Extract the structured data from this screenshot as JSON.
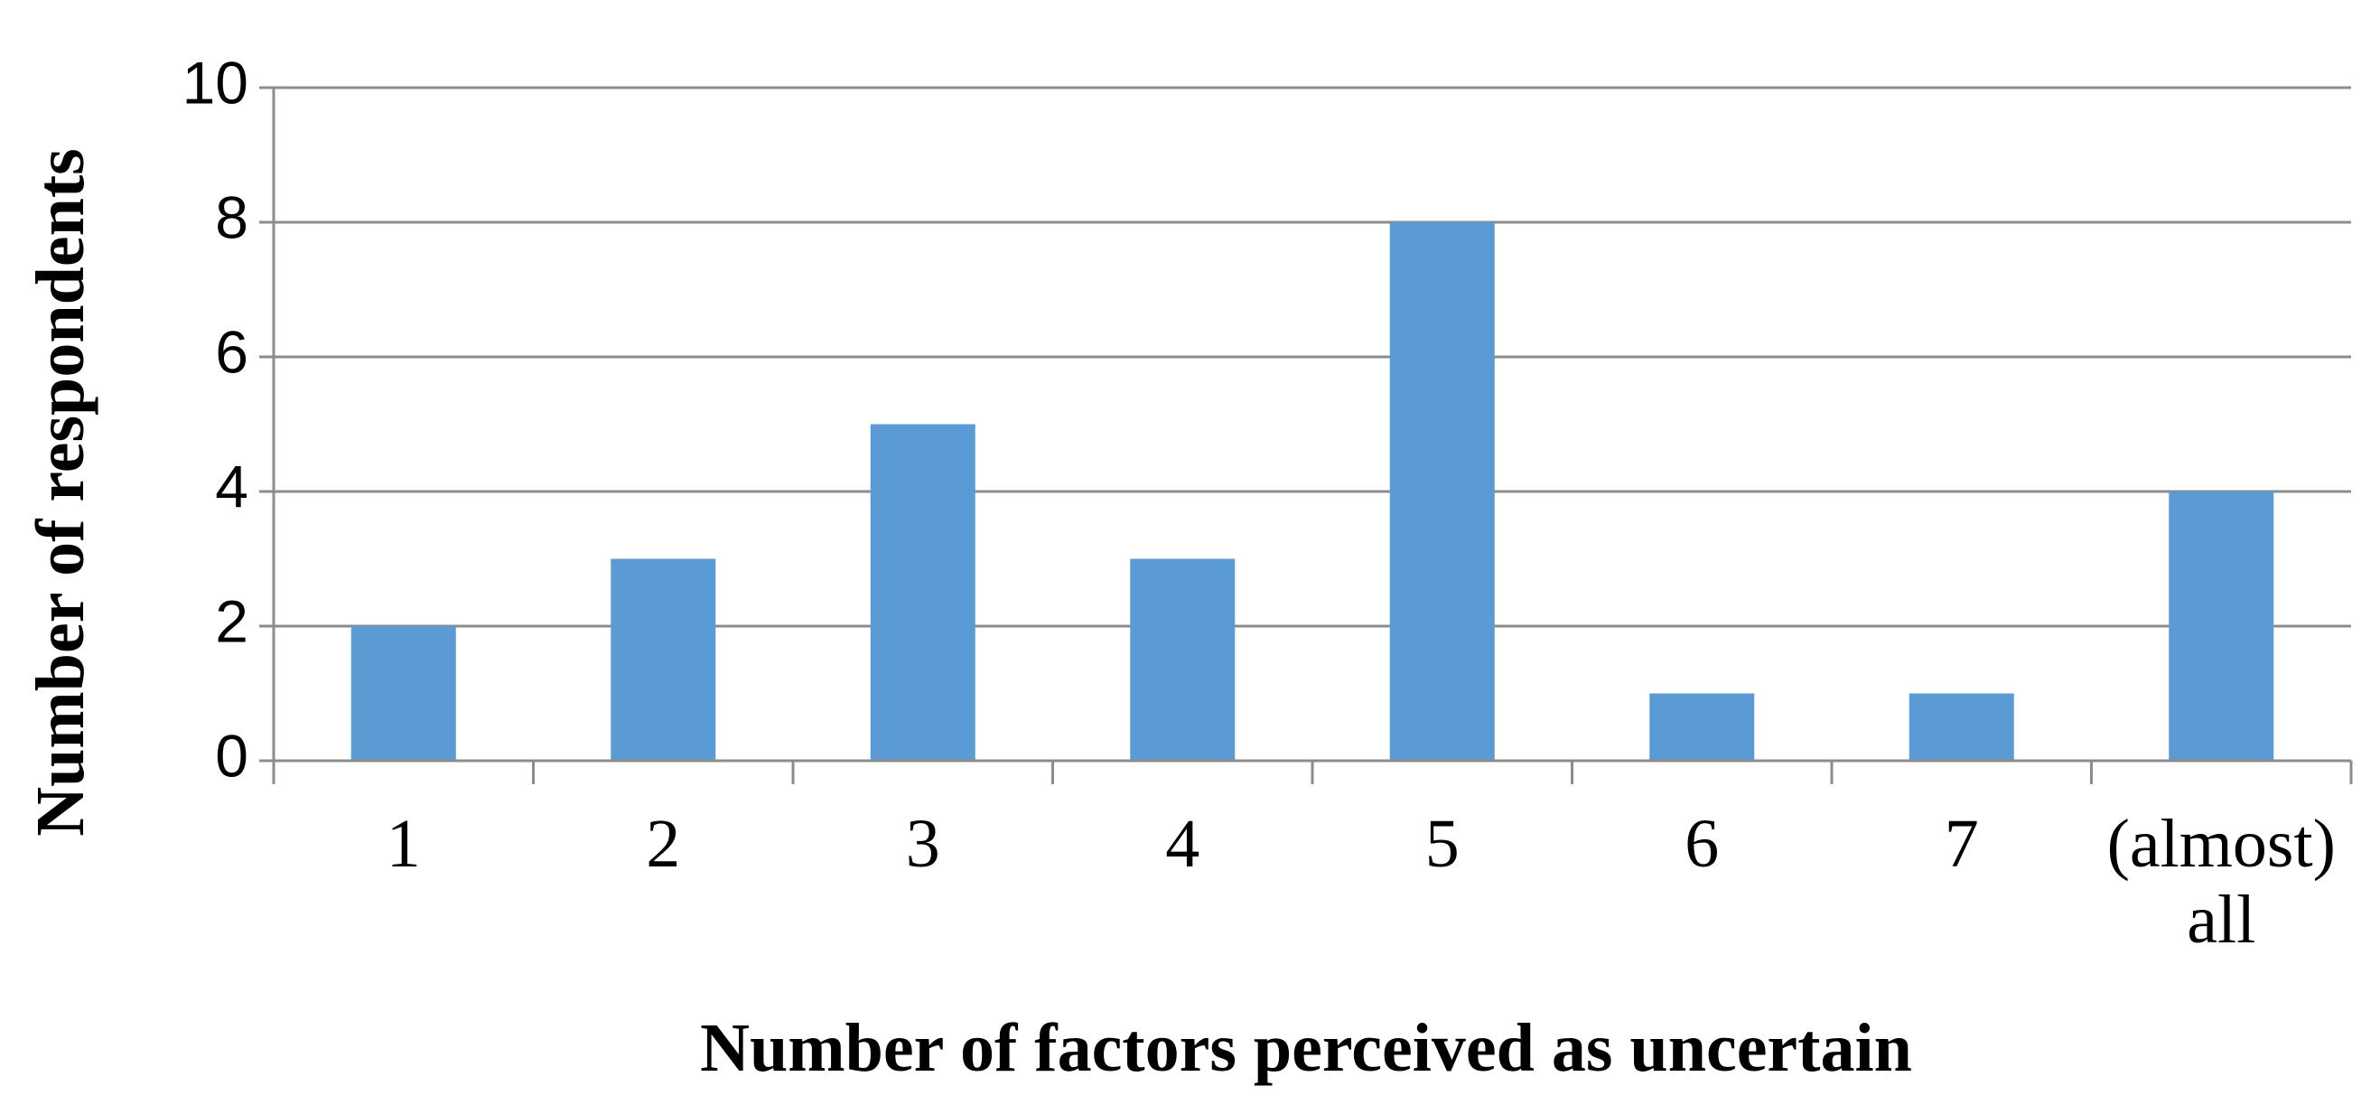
{
  "chart_data": {
    "type": "bar",
    "x_label": "Number of factors perceived as uncertain",
    "y_label": "Number of respondents",
    "categories": [
      "1",
      "2",
      "3",
      "4",
      "5",
      "6",
      "7",
      "(almost) all"
    ],
    "values": [
      2,
      3,
      5,
      3,
      8,
      1,
      1,
      4
    ],
    "color": "#5b9bd5",
    "ylim": [
      0,
      10
    ],
    "yticks": [
      0,
      2,
      4,
      6,
      8,
      10
    ],
    "grid": true
  }
}
